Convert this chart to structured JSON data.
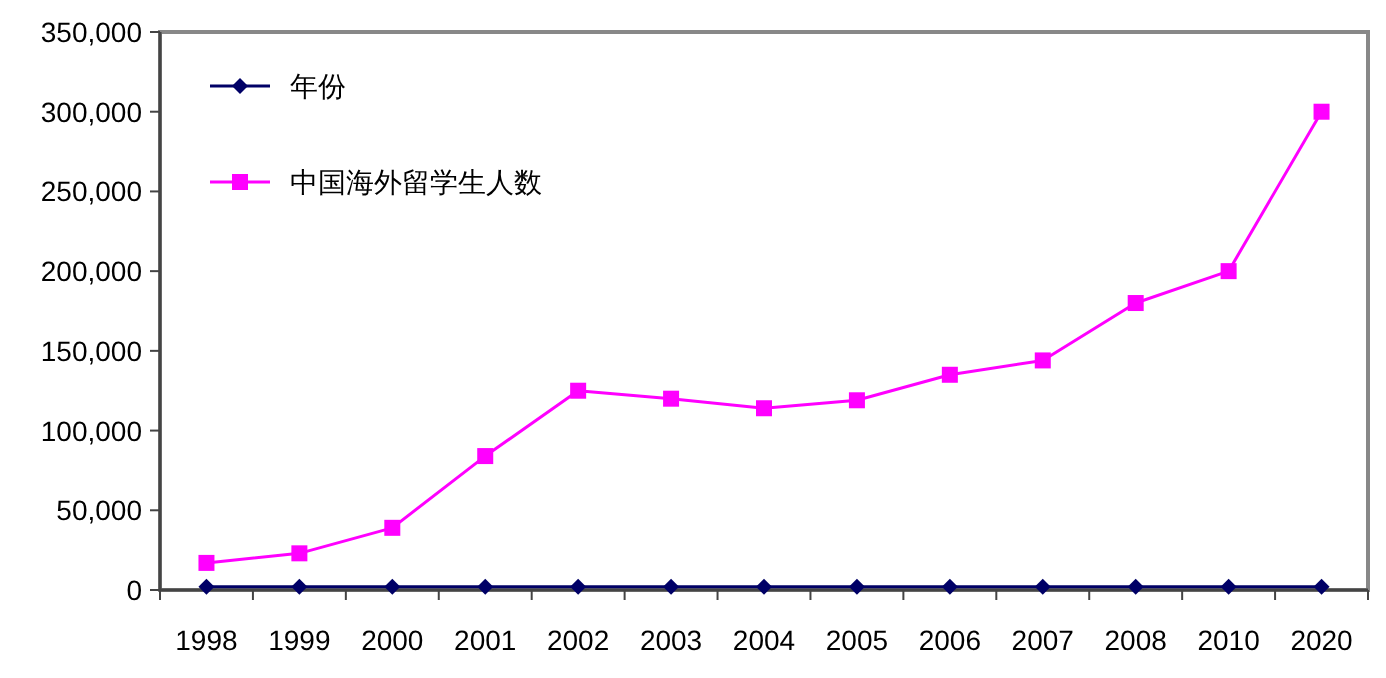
{
  "chart_data": {
    "type": "line",
    "categories": [
      "1998",
      "1999",
      "2000",
      "2001",
      "2002",
      "2003",
      "2004",
      "2005",
      "2006",
      "2007",
      "2008",
      "2010",
      "2020"
    ],
    "series": [
      {
        "name": "年份",
        "color": "#000066",
        "marker": "diamond",
        "values": [
          1998,
          1999,
          2000,
          2001,
          2002,
          2003,
          2004,
          2005,
          2006,
          2007,
          2008,
          2010,
          2020
        ]
      },
      {
        "name": "中国海外留学生人数",
        "color": "#ff00ff",
        "marker": "square",
        "values": [
          17000,
          23000,
          39000,
          84000,
          125000,
          120000,
          114000,
          119000,
          135000,
          144000,
          180000,
          200000,
          300000
        ]
      }
    ],
    "ylim": [
      0,
      350000
    ],
    "yticks": [
      {
        "value": 0,
        "label": "0"
      },
      {
        "value": 50000,
        "label": "50,000"
      },
      {
        "value": 100000,
        "label": "100,000"
      },
      {
        "value": 150000,
        "label": "150,000"
      },
      {
        "value": 200000,
        "label": "200,000"
      },
      {
        "value": 250000,
        "label": "250,000"
      },
      {
        "value": 300000,
        "label": "300,000"
      },
      {
        "value": 350000,
        "label": "350,000"
      }
    ],
    "grid": false,
    "legend": "top left",
    "line_style": "solid"
  }
}
